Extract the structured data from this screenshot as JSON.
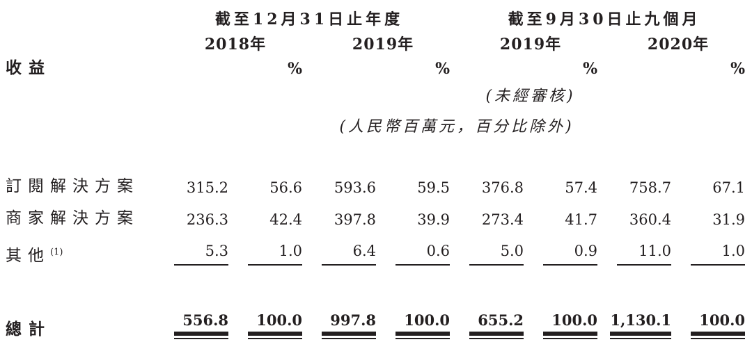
{
  "colors": {
    "text": "#231f20",
    "background": "#ffffff"
  },
  "table": {
    "section_label": "收益",
    "percent_symbol": "%",
    "group_headers": [
      {
        "label": "截至12月31日止年度"
      },
      {
        "label": "截至9月30日止九個月"
      }
    ],
    "year_headers": [
      "2018年",
      "2019年",
      "2019年",
      "2020年"
    ],
    "notes": {
      "unaudited": "(未經審核)",
      "units": "(人民幣百萬元，百分比除外)"
    },
    "rows": [
      {
        "label": "訂閱解決方案",
        "footnote": "",
        "values": [
          "315.2",
          "56.6",
          "593.6",
          "59.5",
          "376.8",
          "57.4",
          "758.7",
          "67.1"
        ]
      },
      {
        "label": "商家解決方案",
        "footnote": "",
        "values": [
          "236.3",
          "42.4",
          "397.8",
          "39.9",
          "273.4",
          "41.7",
          "360.4",
          "31.9"
        ]
      },
      {
        "label": "其他",
        "footnote": "(1)",
        "values": [
          "5.3",
          "1.0",
          "6.4",
          "0.6",
          "5.0",
          "0.9",
          "11.0",
          "1.0"
        ]
      }
    ],
    "total": {
      "label": "總計",
      "values": [
        "556.8",
        "100.0",
        "997.8",
        "100.0",
        "655.2",
        "100.0",
        "1,130.1",
        "100.0"
      ]
    }
  }
}
